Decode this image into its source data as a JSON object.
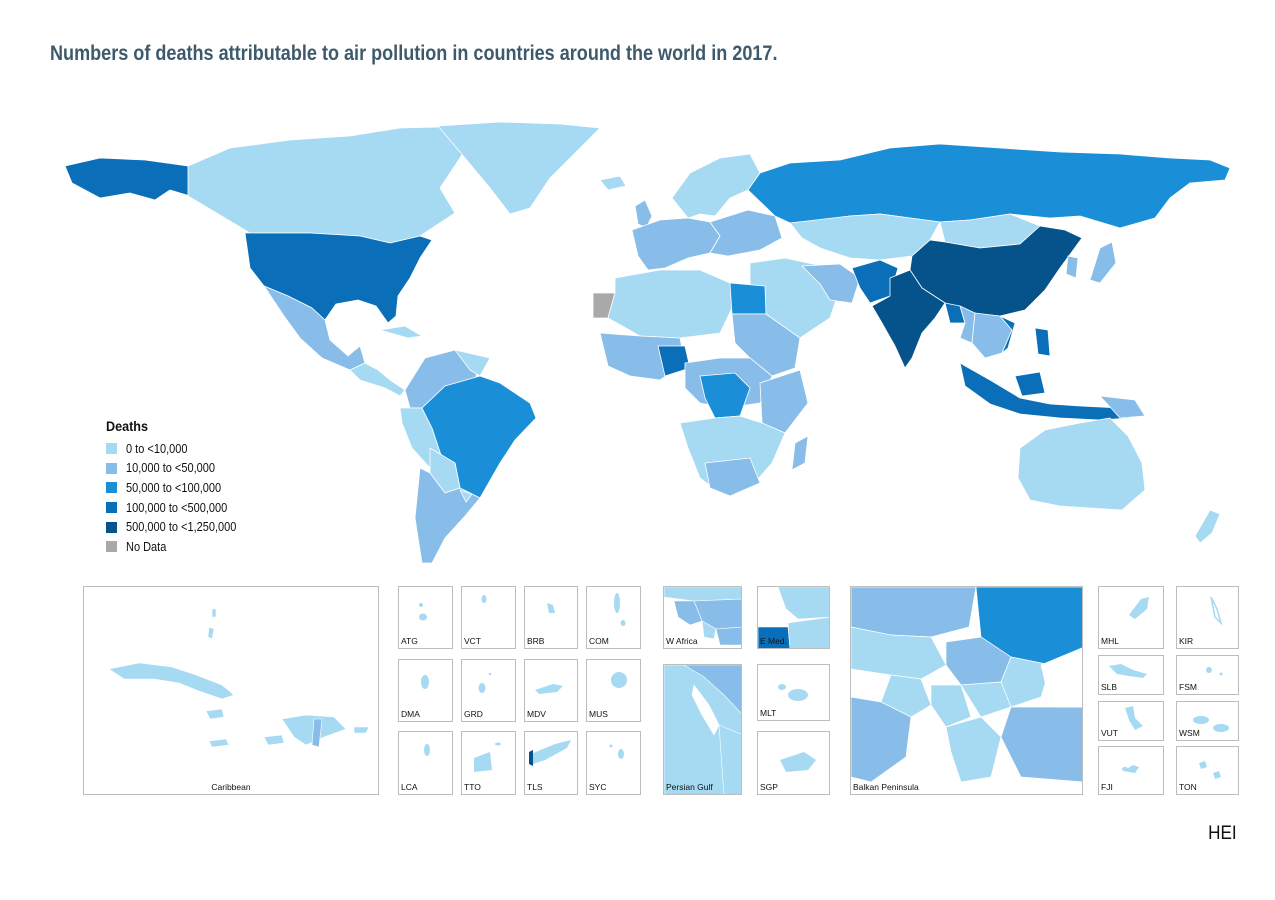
{
  "title": "Numbers of deaths attributable to air pollution in countries around the world in 2017.",
  "legend": {
    "title": "Deaths",
    "items": [
      {
        "label": "0 to <10,000",
        "color": "#a6d9f2"
      },
      {
        "label": "10,000 to <50,000",
        "color": "#87bde8"
      },
      {
        "label": "50,000 to <100,000",
        "color": "#1a8fd8"
      },
      {
        "label": "100,000 to <500,000",
        "color": "#0a6fb8"
      },
      {
        "label": "500,000 to <1,250,000",
        "color": "#06528a"
      },
      {
        "label": "No Data",
        "color": "#a9a9a9"
      }
    ]
  },
  "insets": {
    "caribbean": "Caribbean",
    "atg": "ATG",
    "vct": "VCT",
    "brb": "BRB",
    "com": "COM",
    "dma": "DMA",
    "grd": "GRD",
    "mdv": "MDV",
    "mus": "MUS",
    "lca": "LCA",
    "tto": "TTO",
    "tls": "TLS",
    "syc": "SYC",
    "w_africa": "W Africa",
    "e_med": "E Med.",
    "mlt": "MLT",
    "persian_gulf": "Persian Gulf",
    "sgp": "SGP",
    "balkan": "Balkan Peninsula",
    "mhl": "MHL",
    "kir": "KIR",
    "slb": "SLB",
    "fsm": "FSM",
    "vut": "VUT",
    "wsm": "WSM",
    "fji": "FJI",
    "ton": "TON"
  },
  "source": "HEI"
}
